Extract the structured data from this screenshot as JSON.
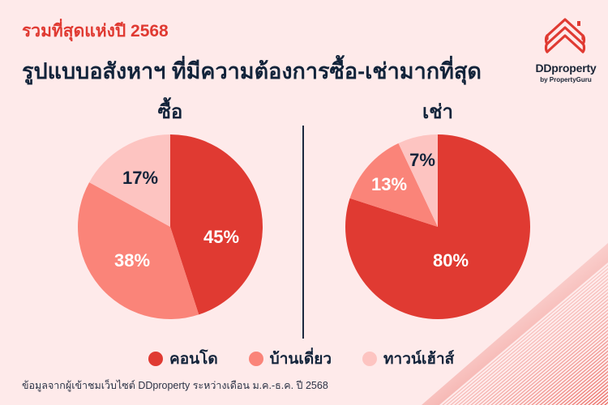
{
  "header": {
    "subtitle": "รวมที่สุดแห่งปี 2568",
    "title": "รูปแบบอสังหาฯ ที่มีความต้องการซื้อ-เช่ามากที่สุด"
  },
  "logo": {
    "icon": "ddproperty-house-chevrons-icon",
    "name": "DDproperty",
    "tagline": "by PropertyGuru",
    "color": "#E03A32"
  },
  "colors": {
    "background": "#FEEAEA",
    "condo": "#E03A32",
    "house": "#FA8479",
    "townhouse": "#FDC4C1",
    "text_dark": "#12233A"
  },
  "sections": [
    {
      "title": "ซื้อ",
      "labels": {
        "condo": "45%",
        "house": "38%",
        "townhouse": "17%"
      }
    },
    {
      "title": "เช่า",
      "labels": {
        "condo": "80%",
        "house": "13%",
        "townhouse": "7%"
      }
    }
  ],
  "legend": [
    {
      "label": "คอนโด",
      "color": "#E03A32"
    },
    {
      "label": "บ้านเดี่ยว",
      "color": "#FA8479"
    },
    {
      "label": "ทาวน์เฮ้าส์",
      "color": "#FDC4C1"
    }
  ],
  "footer": {
    "source": "ข้อมูลจากผู้เข้าชมเว็บไซต์ DDproperty ระหว่างเดือน ม.ค.-ธ.ค. ปี 2568"
  },
  "chart_data": [
    {
      "type": "pie",
      "title": "ซื้อ",
      "categories": [
        "คอนโด",
        "บ้านเดี่ยว",
        "ทาวน์เฮ้าส์"
      ],
      "values": [
        45,
        38,
        17
      ],
      "unit": "%",
      "colors": [
        "#E03A32",
        "#FA8479",
        "#FDC4C1"
      ],
      "start_angle": "12 o'clock, clockwise",
      "legend_position": "bottom"
    },
    {
      "type": "pie",
      "title": "เช่า",
      "categories": [
        "คอนโด",
        "บ้านเดี่ยว",
        "ทาวน์เฮ้าส์"
      ],
      "values": [
        80,
        13,
        7
      ],
      "unit": "%",
      "colors": [
        "#E03A32",
        "#FA8479",
        "#FDC4C1"
      ],
      "start_angle": "12 o'clock, clockwise",
      "legend_position": "bottom"
    }
  ]
}
